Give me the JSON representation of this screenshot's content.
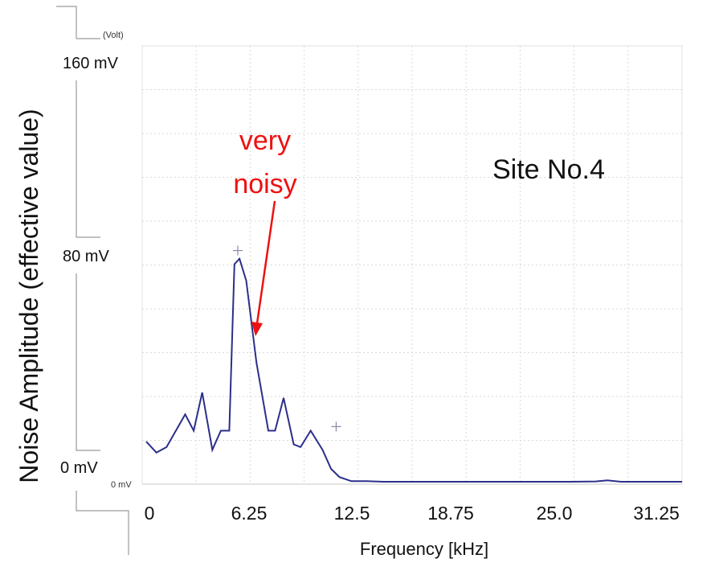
{
  "chart_data": {
    "type": "line",
    "unit_label": "(Volt)",
    "ylabel": "Noise Amplitude (effective value)",
    "xlabel": "Frequency [kHz]",
    "y_ticks": [
      {
        "value": 0,
        "label": "0 mV"
      },
      {
        "value": 80,
        "label": "80 mV"
      },
      {
        "value": 160,
        "label": "160 mV"
      }
    ],
    "inner_zero_label": "0 mV",
    "x_ticks": [
      {
        "value": 0,
        "label": "0"
      },
      {
        "value": 6.25,
        "label": "6.25"
      },
      {
        "value": 12.5,
        "label": "12.5"
      },
      {
        "value": 18.75,
        "label": "18.75"
      },
      {
        "value": 25.0,
        "label": "25.0"
      },
      {
        "value": 31.25,
        "label": "31.25"
      }
    ],
    "xlim": [
      0,
      31.6
    ],
    "ylim": [
      0,
      160
    ],
    "grid": true,
    "series": [
      {
        "color": "#2b2f8a",
        "x": [
          0,
          0.6,
          1.2,
          2.3,
          2.8,
          3.3,
          3.9,
          4.4,
          4.9,
          5.2,
          5.5,
          5.9,
          6.5,
          7.2,
          7.6,
          8.1,
          8.7,
          9.1,
          9.7,
          10.4,
          10.9,
          11.4,
          12.1,
          13.0,
          14.0,
          15.0,
          17.0,
          19.0,
          21.0,
          23.0,
          25.0,
          26.5,
          27.2,
          28.0,
          30.0,
          31.6
        ],
        "y": [
          15,
          11,
          13,
          25,
          19,
          33,
          12,
          19,
          19,
          80,
          82,
          74,
          44,
          19,
          19,
          31,
          14,
          13,
          19,
          12,
          5,
          2,
          0.5,
          0.5,
          0.3,
          0.3,
          0.3,
          0.3,
          0.3,
          0.3,
          0.3,
          0.4,
          0.8,
          0.3,
          0.3,
          0.3
        ]
      }
    ],
    "markers": [
      {
        "x": 5.4,
        "y": 85
      },
      {
        "x": 11.2,
        "y": 20.5
      }
    ],
    "annotations": [
      {
        "text_lines": [
          "very",
          "noisy"
        ],
        "color": "#ee1111"
      },
      {
        "text": "Site No.4",
        "color": "#111111"
      }
    ]
  }
}
